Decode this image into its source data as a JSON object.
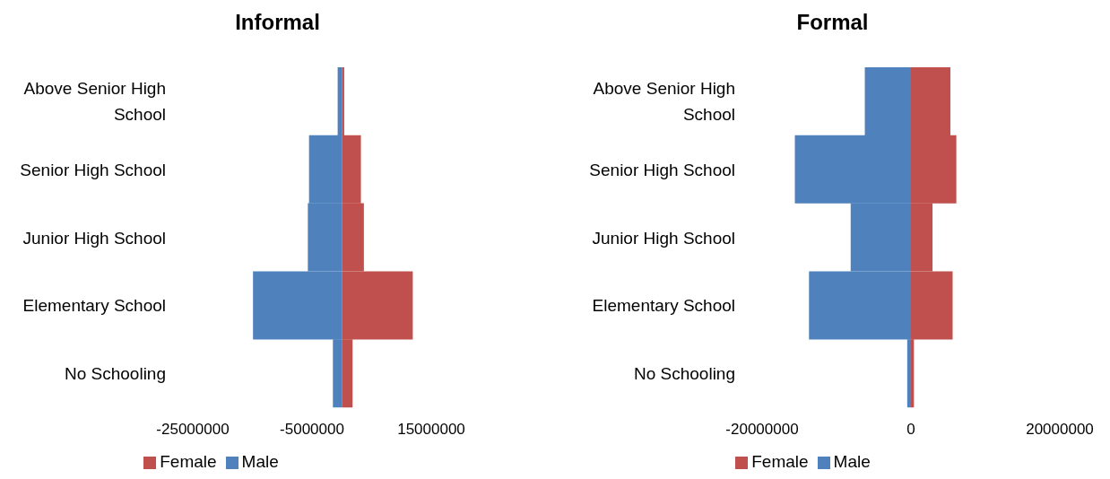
{
  "chart_data": [
    {
      "type": "bar",
      "orientation": "horizontal",
      "stacked": true,
      "title": "Informal",
      "categories": [
        "Above Senior High School",
        "Senior High School",
        "Junior High School",
        "Elementary School",
        "No Schooling"
      ],
      "series": [
        {
          "name": "Female",
          "color": "#c0504d",
          "values": [
            400000,
            3200000,
            3700000,
            11900000,
            1800000
          ]
        },
        {
          "name": "Male",
          "color": "#4f81bd",
          "values": [
            -700000,
            -5500000,
            -5700000,
            -14900000,
            -1500000
          ]
        }
      ],
      "xlim": [
        -25000000,
        15000000
      ],
      "xticks": [
        -25000000,
        -5000000,
        15000000
      ],
      "grid": false,
      "legend": "bottom"
    },
    {
      "type": "bar",
      "orientation": "horizontal",
      "stacked": true,
      "title": "Formal",
      "categories": [
        "Above Senior High School",
        "Senior High School",
        "Junior High School",
        "Elementary School",
        "No Schooling"
      ],
      "series": [
        {
          "name": "Female",
          "color": "#c0504d",
          "values": [
            5300000,
            6100000,
            2900000,
            5600000,
            400000
          ]
        },
        {
          "name": "Male",
          "color": "#4f81bd",
          "values": [
            -6200000,
            -15600000,
            -8100000,
            -13700000,
            -500000
          ]
        }
      ],
      "xlim": [
        -20000000,
        20000000
      ],
      "xticks": [
        -20000000,
        0,
        20000000
      ],
      "grid": false,
      "legend": "bottom"
    }
  ]
}
